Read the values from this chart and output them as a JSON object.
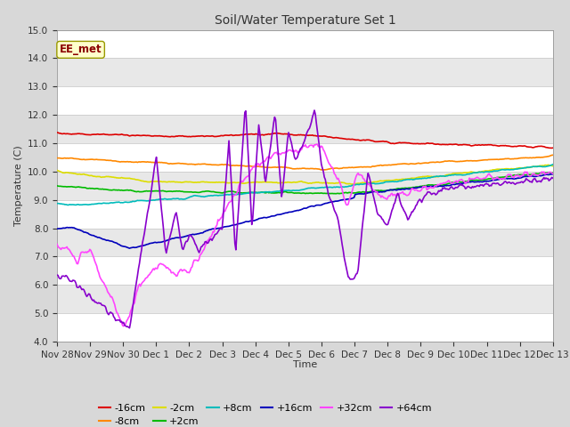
{
  "title": "Soil/Water Temperature Set 1",
  "ylabel": "Temperature (C)",
  "xlabel": "Time",
  "annotation": "EE_met",
  "ylim": [
    4.0,
    15.0
  ],
  "yticks": [
    4.0,
    5.0,
    6.0,
    7.0,
    8.0,
    9.0,
    10.0,
    11.0,
    12.0,
    13.0,
    14.0,
    15.0
  ],
  "xtick_labels": [
    "Nov 28",
    "Nov 29",
    "Nov 30",
    "Dec 1",
    "Dec 2",
    "Dec 3",
    "Dec 4",
    "Dec 5",
    "Dec 6",
    "Dec 7",
    "Dec 8",
    "Dec 9",
    "Dec 10",
    "Dec 11",
    "Dec 12",
    "Dec 13"
  ],
  "series": {
    "-16cm": {
      "color": "#dd0000",
      "lw": 1.2
    },
    "-8cm": {
      "color": "#ff8800",
      "lw": 1.2
    },
    "-2cm": {
      "color": "#dddd00",
      "lw": 1.2
    },
    "+2cm": {
      "color": "#00bb00",
      "lw": 1.2
    },
    "+8cm": {
      "color": "#00bbbb",
      "lw": 1.2
    },
    "+16cm": {
      "color": "#0000bb",
      "lw": 1.2
    },
    "+32cm": {
      "color": "#ff44ff",
      "lw": 1.2
    },
    "+64cm": {
      "color": "#8800cc",
      "lw": 1.2
    }
  },
  "fig_bg": "#d8d8d8",
  "plot_bg": "#ffffff",
  "band_color": "#e8e8e8",
  "grid_color": "#cccccc",
  "n_points": 500
}
